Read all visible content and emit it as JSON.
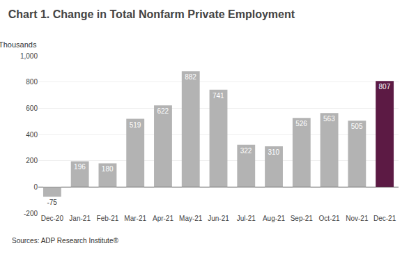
{
  "chart_data": {
    "type": "bar",
    "title": "Chart 1. Change in Total Nonfarm Private Employment",
    "ylabel": "Thousands",
    "annotations": [
      "Sources: ADP Research Institute®"
    ],
    "categories": [
      "Dec-20",
      "Jan-21",
      "Feb-21",
      "Mar-21",
      "Apr-21",
      "May-21",
      "Jun-21",
      "Jul-21",
      "Aug-21",
      "Sep-21",
      "Oct-21",
      "Nov-21",
      "Dec-21"
    ],
    "values": [
      -75,
      196,
      180,
      519,
      622,
      882,
      741,
      322,
      310,
      526,
      563,
      505,
      807
    ],
    "colors": [
      "#b3b3b3",
      "#b3b3b3",
      "#b3b3b3",
      "#b3b3b3",
      "#b3b3b3",
      "#b3b3b3",
      "#b3b3b3",
      "#b3b3b3",
      "#b3b3b3",
      "#b3b3b3",
      "#b3b3b3",
      "#b3b3b3",
      "#5c1a44"
    ],
    "ylim": [
      -200,
      1000
    ],
    "yticks": [
      -200,
      0,
      200,
      400,
      600,
      800,
      {
        "value": 1000,
        "label": "1,000"
      }
    ],
    "grid": true,
    "data_labels": true
  }
}
